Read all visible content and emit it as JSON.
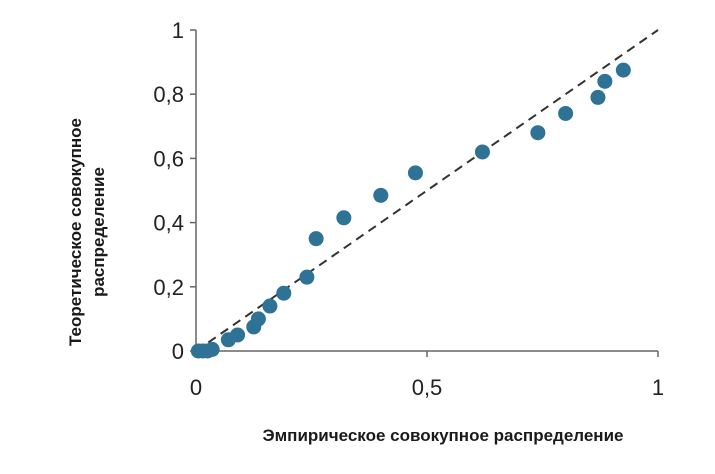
{
  "chart_data": {
    "type": "scatter",
    "title": "",
    "xlabel": "Эмпирическое совокупное распределение",
    "ylabel_lines": [
      "Теоретическое совокупное",
      "распределение"
    ],
    "xlim": [
      0,
      1
    ],
    "ylim": [
      0,
      1
    ],
    "x_ticks": [
      {
        "value": 0,
        "label": "0"
      },
      {
        "value": 0.5,
        "label": "0,5"
      },
      {
        "value": 1,
        "label": "1"
      }
    ],
    "y_ticks": [
      {
        "value": 0,
        "label": "0"
      },
      {
        "value": 0.2,
        "label": "0,2"
      },
      {
        "value": 0.4,
        "label": "0,4"
      },
      {
        "value": 0.6,
        "label": "0,6"
      },
      {
        "value": 0.8,
        "label": "0,8"
      },
      {
        "value": 1,
        "label": "1"
      }
    ],
    "grid": false,
    "reference_line": {
      "from": [
        0,
        0
      ],
      "to": [
        1,
        1
      ],
      "style": "dashed",
      "color": "#333333"
    },
    "point_color": "#2e7296",
    "points": [
      {
        "x": 0.005,
        "y": 0.0
      },
      {
        "x": 0.015,
        "y": 0.0
      },
      {
        "x": 0.025,
        "y": 0.0
      },
      {
        "x": 0.035,
        "y": 0.005
      },
      {
        "x": 0.07,
        "y": 0.035
      },
      {
        "x": 0.09,
        "y": 0.05
      },
      {
        "x": 0.125,
        "y": 0.075
      },
      {
        "x": 0.135,
        "y": 0.1
      },
      {
        "x": 0.16,
        "y": 0.14
      },
      {
        "x": 0.19,
        "y": 0.18
      },
      {
        "x": 0.24,
        "y": 0.23
      },
      {
        "x": 0.26,
        "y": 0.35
      },
      {
        "x": 0.32,
        "y": 0.415
      },
      {
        "x": 0.4,
        "y": 0.485
      },
      {
        "x": 0.475,
        "y": 0.555
      },
      {
        "x": 0.62,
        "y": 0.62
      },
      {
        "x": 0.74,
        "y": 0.68
      },
      {
        "x": 0.8,
        "y": 0.74
      },
      {
        "x": 0.87,
        "y": 0.79
      },
      {
        "x": 0.885,
        "y": 0.84
      },
      {
        "x": 0.925,
        "y": 0.875
      }
    ]
  }
}
